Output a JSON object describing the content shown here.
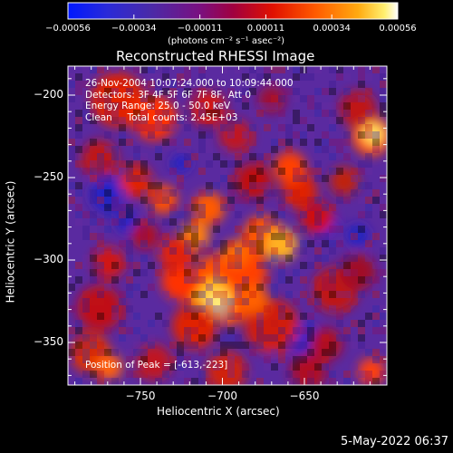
{
  "window": {
    "title": "Reconstructed RHESSI Image"
  },
  "colorbar": {
    "unit_label": "(photons cm⁻² s⁻¹ asec⁻²)",
    "ticks": [
      "−0.00056",
      "−0.00034",
      "−0.00011",
      "0.00011",
      "0.00034",
      "0.00056"
    ]
  },
  "image": {
    "annotations": {
      "time_range": "26-Nov-2004 10:07:24.000 to 10:09:44.000",
      "detectors": "Detectors: 3F 4F 5F 6F 7F 8F, Att 0",
      "energy": "Energy Range: 25.0 - 50.0 keV",
      "method": "Clean     Total counts: 2.45E+03"
    },
    "peak_label": "Position of Peak = [-613,-223]"
  },
  "axes": {
    "xlabel": "Heliocentric X (arcsec)",
    "ylabel": "Heliocentric Y (arcsec)",
    "xticks": [
      "−750",
      "−700",
      "−650"
    ],
    "yticks": [
      "−200",
      "−250",
      "−300",
      "−350"
    ]
  },
  "footer": {
    "date": "5-May-2022 06:37"
  },
  "colors": {
    "background": "#000000",
    "low": "#1a1aff",
    "mid": "#5a28a0",
    "high": "#ff3c00",
    "peak": "#ffffc8"
  }
}
